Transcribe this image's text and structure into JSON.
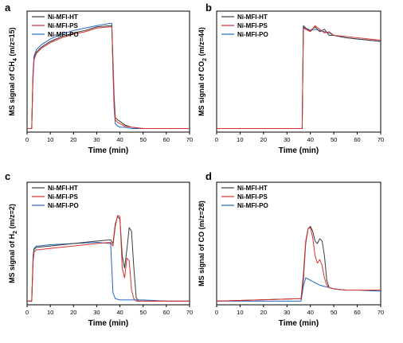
{
  "colors": {
    "Ni-MFI-HT": "#3c3c3c",
    "Ni-MFI-PS": "#d9302f",
    "Ni-MFI-PO": "#2166c4"
  },
  "chart_data": [
    {
      "panel": "a",
      "type": "line",
      "ylabel": {
        "pre": "MS signal of CH",
        "sub": "4",
        "post": " (m/z=15)"
      },
      "xlabel": "Time (min)",
      "xlim": [
        0,
        70
      ],
      "ylim": [
        0,
        1
      ],
      "y_ticks_shown": false,
      "xticks": [
        0,
        10,
        20,
        30,
        40,
        50,
        60,
        70
      ],
      "legend": "top-left",
      "series": [
        {
          "name": "Ni-MFI-HT",
          "x": [
            0,
            2,
            2.5,
            3,
            4,
            6,
            10,
            15,
            20,
            25,
            30,
            36,
            36.5,
            37,
            37.5,
            38,
            39,
            40,
            42,
            45,
            50,
            60,
            70
          ],
          "y": [
            0.03,
            0.03,
            0.44,
            0.61,
            0.66,
            0.7,
            0.75,
            0.79,
            0.82,
            0.84,
            0.87,
            0.88,
            0.88,
            0.6,
            0.3,
            0.12,
            0.1,
            0.09,
            0.06,
            0.04,
            0.03,
            0.03,
            0.03
          ]
        },
        {
          "name": "Ni-MFI-PS",
          "x": [
            0,
            2,
            2.5,
            3,
            4,
            6,
            10,
            15,
            20,
            25,
            30,
            36,
            36.5,
            37,
            37.5,
            38,
            39,
            40,
            42,
            45,
            50,
            60,
            70
          ],
          "y": [
            0.03,
            0.03,
            0.42,
            0.6,
            0.65,
            0.69,
            0.74,
            0.78,
            0.81,
            0.83,
            0.86,
            0.87,
            0.87,
            0.55,
            0.25,
            0.1,
            0.08,
            0.07,
            0.05,
            0.04,
            0.03,
            0.03,
            0.03
          ]
        },
        {
          "name": "Ni-MFI-PO",
          "x": [
            0,
            2,
            2.5,
            3,
            4,
            6,
            10,
            15,
            20,
            25,
            30,
            36,
            36.5,
            37,
            37.5,
            38,
            39,
            40,
            42,
            45,
            50,
            60,
            70
          ],
          "y": [
            0.03,
            0.03,
            0.47,
            0.63,
            0.68,
            0.72,
            0.77,
            0.81,
            0.84,
            0.86,
            0.88,
            0.9,
            0.9,
            0.5,
            0.2,
            0.07,
            0.05,
            0.04,
            0.04,
            0.03,
            0.03,
            0.03,
            0.03
          ]
        }
      ]
    },
    {
      "panel": "b",
      "type": "line",
      "ylabel": {
        "pre": "MS signal of CO",
        "sub": "2",
        "post": " (m/z=44)"
      },
      "xlabel": "Time (min)",
      "xlim": [
        0,
        70
      ],
      "ylim": [
        0,
        1
      ],
      "y_ticks_shown": false,
      "xticks": [
        0,
        10,
        20,
        30,
        40,
        50,
        60,
        70
      ],
      "legend": "top-left",
      "series": [
        {
          "name": "Ni-MFI-HT",
          "x": [
            0,
            36.5,
            37,
            38,
            40,
            42,
            44,
            46,
            48,
            50,
            55,
            60,
            65,
            70
          ],
          "y": [
            0.03,
            0.03,
            0.88,
            0.86,
            0.84,
            0.87,
            0.83,
            0.85,
            0.8,
            0.8,
            0.78,
            0.77,
            0.76,
            0.75
          ]
        },
        {
          "name": "Ni-MFI-PS",
          "x": [
            0,
            36.5,
            37,
            38,
            40,
            42,
            44,
            46,
            48,
            50,
            55,
            60,
            65,
            70
          ],
          "y": [
            0.03,
            0.03,
            0.86,
            0.85,
            0.83,
            0.88,
            0.85,
            0.82,
            0.83,
            0.8,
            0.79,
            0.78,
            0.77,
            0.76
          ]
        },
        {
          "name": "Ni-MFI-PO",
          "x": [
            0,
            36.5,
            37,
            38,
            40,
            42,
            44,
            46,
            48,
            50,
            55,
            60,
            65,
            70
          ],
          "y": [
            0.03,
            0.03,
            0.87,
            0.85,
            0.84,
            0.85,
            0.84,
            0.83,
            0.82,
            0.8,
            0.78,
            0.77,
            0.76,
            0.75
          ]
        }
      ]
    },
    {
      "panel": "c",
      "type": "line",
      "ylabel": {
        "pre": "MS signal of H",
        "sub": "2",
        "post": " (m/z=2)"
      },
      "xlabel": "Time (min)",
      "xlim": [
        0,
        70
      ],
      "ylim": [
        0,
        1
      ],
      "y_ticks_shown": false,
      "xticks": [
        0,
        10,
        20,
        30,
        40,
        50,
        60,
        70
      ],
      "legend": "top-left",
      "series": [
        {
          "name": "Ni-MFI-HT",
          "x": [
            0,
            2,
            2.6,
            3,
            4,
            5,
            10,
            20,
            30,
            36,
            37,
            38,
            39,
            40,
            41,
            42,
            43,
            44,
            45,
            46,
            47,
            48,
            50,
            60,
            70
          ],
          "y": [
            0.03,
            0.03,
            0.38,
            0.45,
            0.47,
            0.47,
            0.48,
            0.5,
            0.52,
            0.53,
            0.5,
            0.66,
            0.72,
            0.7,
            0.4,
            0.3,
            0.45,
            0.63,
            0.6,
            0.3,
            0.06,
            0.03,
            0.03,
            0.03,
            0.03
          ]
        },
        {
          "name": "Ni-MFI-PS",
          "x": [
            0,
            2,
            2.6,
            3,
            4,
            5,
            10,
            20,
            30,
            36,
            37,
            38,
            39,
            40,
            41,
            42,
            43,
            44,
            45,
            46,
            47,
            48,
            50,
            60,
            70
          ],
          "y": [
            0.03,
            0.03,
            0.35,
            0.43,
            0.45,
            0.45,
            0.46,
            0.48,
            0.5,
            0.51,
            0.48,
            0.64,
            0.73,
            0.72,
            0.3,
            0.22,
            0.38,
            0.36,
            0.12,
            0.05,
            0.03,
            0.03,
            0.03,
            0.03,
            0.03
          ]
        },
        {
          "name": "Ni-MFI-PO",
          "x": [
            0,
            2,
            2.6,
            3,
            4,
            5,
            10,
            20,
            30,
            36,
            37,
            38,
            40,
            42,
            44,
            46,
            50,
            60,
            70
          ],
          "y": [
            0.03,
            0.03,
            0.4,
            0.46,
            0.48,
            0.48,
            0.49,
            0.5,
            0.51,
            0.5,
            0.1,
            0.05,
            0.04,
            0.04,
            0.04,
            0.04,
            0.04,
            0.03,
            0.03
          ]
        }
      ]
    },
    {
      "panel": "d",
      "type": "line",
      "ylabel": {
        "pre": "MS signal of CO (m/z=28)",
        "sub": "",
        "post": ""
      },
      "xlabel": "Time (min)",
      "xlim": [
        0,
        70
      ],
      "ylim": [
        0,
        1
      ],
      "y_ticks_shown": false,
      "xticks": [
        0,
        10,
        20,
        30,
        40,
        50,
        60,
        70
      ],
      "legend": "top-left",
      "series": [
        {
          "name": "Ni-MFI-HT",
          "x": [
            0,
            36,
            37,
            38,
            39,
            40,
            41,
            42,
            43,
            44,
            45,
            46,
            47,
            48,
            50,
            55,
            60,
            70
          ],
          "y": [
            0.03,
            0.05,
            0.2,
            0.5,
            0.62,
            0.64,
            0.6,
            0.52,
            0.5,
            0.54,
            0.52,
            0.4,
            0.2,
            0.14,
            0.13,
            0.12,
            0.12,
            0.12
          ]
        },
        {
          "name": "Ni-MFI-PS",
          "x": [
            0,
            36,
            37,
            38,
            39,
            40,
            41,
            42,
            43,
            44,
            45,
            46,
            47,
            48,
            50,
            55,
            60,
            70
          ],
          "y": [
            0.03,
            0.05,
            0.25,
            0.52,
            0.62,
            0.63,
            0.55,
            0.4,
            0.34,
            0.37,
            0.32,
            0.22,
            0.16,
            0.14,
            0.13,
            0.12,
            0.12,
            0.12
          ]
        },
        {
          "name": "Ni-MFI-PO",
          "x": [
            0,
            36,
            37,
            38,
            40,
            42,
            44,
            46,
            48,
            50,
            55,
            60,
            70
          ],
          "y": [
            0.03,
            0.03,
            0.15,
            0.22,
            0.2,
            0.18,
            0.16,
            0.15,
            0.14,
            0.13,
            0.12,
            0.12,
            0.11
          ]
        }
      ]
    }
  ]
}
